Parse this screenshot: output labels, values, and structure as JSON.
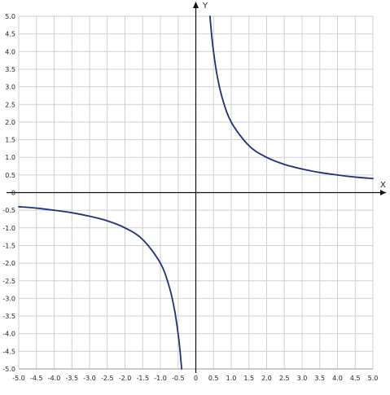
{
  "chart_data": {
    "type": "line",
    "xlabel": "X",
    "ylabel": "Y",
    "xlim": [
      -5.0,
      5.0
    ],
    "ylim": [
      -5.0,
      5.0
    ],
    "grid": true,
    "xticks": [
      "-5.0",
      "-4.5",
      "-4.0",
      "-3.5",
      "-3.0",
      "-2.5",
      "-2.0",
      "-1.5",
      "-1.0",
      "-0.5",
      "0",
      "0.5",
      "1.0",
      "1.5",
      "2.0",
      "2.5",
      "3.0",
      "3.5",
      "4.0",
      "4.5",
      "5.0"
    ],
    "yticks": [
      "5.0",
      "4.5",
      "4.0",
      "3.5",
      "3.0",
      "2.5",
      "2.0",
      "1.5",
      "1.0",
      "0.5",
      "0",
      "-0.5",
      "-1.0",
      "-1.5",
      "-2.0",
      "-2.5",
      "-3.0",
      "-3.5",
      "-4.0",
      "-4.5",
      "-5.0"
    ],
    "series": [
      {
        "color": "#1f2f7a",
        "segments": [
          {
            "x": [
              -5.0,
              -4.5,
              -4.0,
              -3.5,
              -3.0,
              -2.5,
              -2.0,
              -1.5,
              -1.0,
              -0.75,
              -0.6,
              -0.5,
              -0.45,
              -0.4
            ],
            "y": [
              -0.4,
              -0.44,
              -0.5,
              -0.57,
              -0.67,
              -0.8,
              -1.0,
              -1.33,
              -2.0,
              -2.67,
              -3.33,
              -4.0,
              -4.44,
              -5.0
            ]
          },
          {
            "x": [
              0.4,
              0.45,
              0.5,
              0.6,
              0.75,
              1.0,
              1.5,
              2.0,
              2.5,
              3.0,
              3.5,
              4.0,
              4.5,
              5.0
            ],
            "y": [
              5.0,
              4.44,
              4.0,
              3.33,
              2.67,
              2.0,
              1.33,
              1.0,
              0.8,
              0.67,
              0.57,
              0.5,
              0.44,
              0.4
            ]
          }
        ]
      }
    ]
  }
}
